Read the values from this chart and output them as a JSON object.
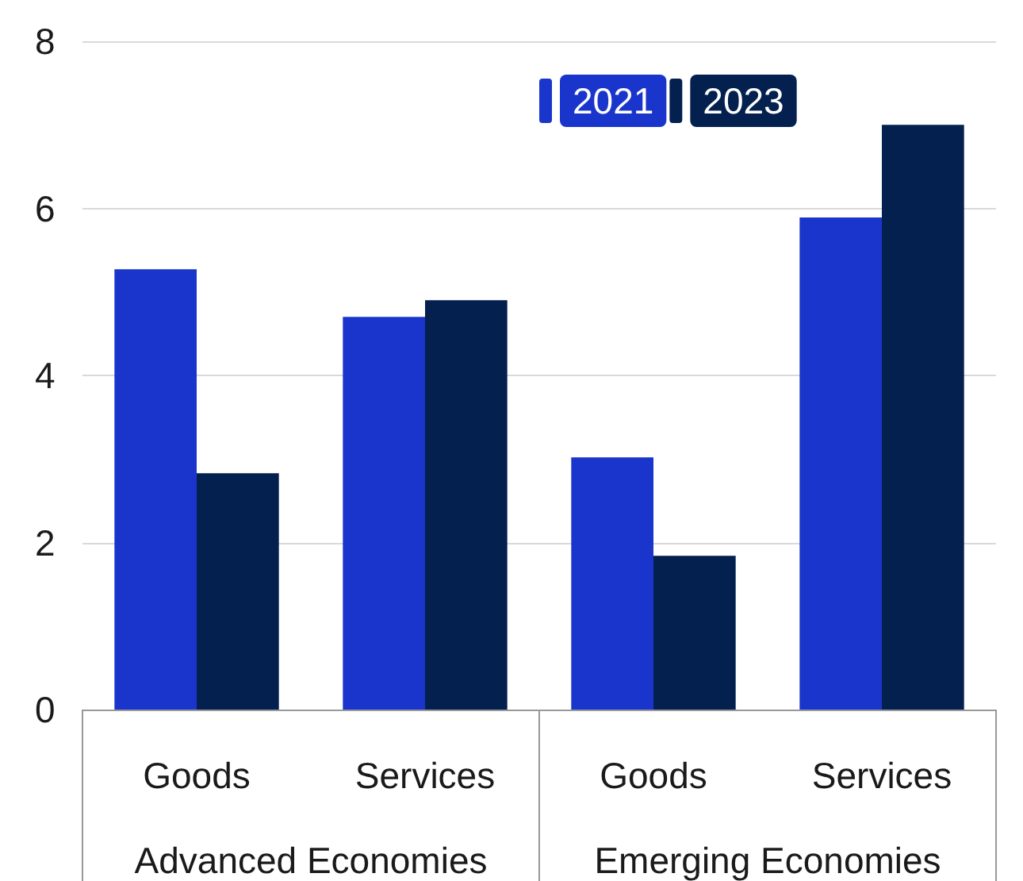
{
  "chart_data": {
    "type": "bar",
    "categories": [
      "Goods",
      "Services",
      "Goods",
      "Services"
    ],
    "series": [
      {
        "name": "2021",
        "color": "#1a35cc",
        "values": [
          5.27,
          4.7,
          3.02,
          5.89
        ]
      },
      {
        "name": "2023",
        "color": "#03204f",
        "values": [
          2.83,
          4.9,
          1.84,
          7.0
        ]
      }
    ],
    "annotations": [
      "Advanced Economies",
      "Emerging Economies"
    ],
    "ylim": [
      0,
      8
    ],
    "yticks": [
      0,
      2,
      4,
      6,
      8
    ],
    "grid": "y",
    "legend": "top"
  }
}
